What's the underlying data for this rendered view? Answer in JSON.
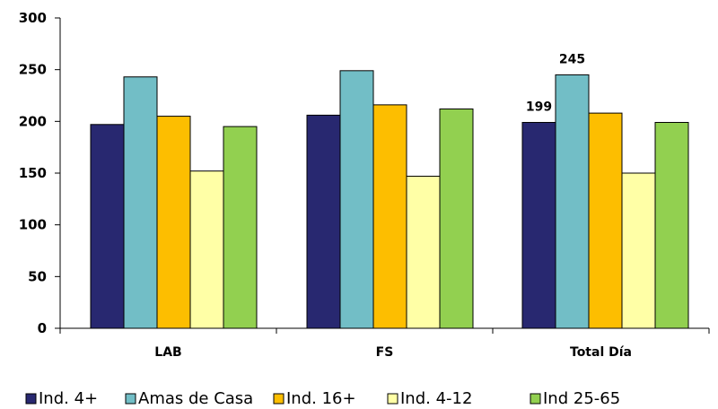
{
  "chart_data": {
    "type": "bar",
    "categories": [
      "LAB",
      "FS",
      "Total Día"
    ],
    "series": [
      {
        "name": "Ind. 4+",
        "color": "#282870",
        "values": [
          197,
          206,
          199
        ]
      },
      {
        "name": "Amas de Casa",
        "color": "#72bec6",
        "values": [
          243,
          249,
          245
        ]
      },
      {
        "name": "Ind. 16+",
        "color": "#fdbe00",
        "values": [
          205,
          216,
          208
        ]
      },
      {
        "name": "Ind. 4-12",
        "color": "#ffffa6",
        "values": [
          152,
          147,
          150
        ]
      },
      {
        "name": "Ind 25-65",
        "color": "#92d050",
        "values": [
          195,
          212,
          199
        ]
      }
    ],
    "data_labels": [
      {
        "category": "Total Día",
        "series": "Ind. 4+",
        "text": "199"
      },
      {
        "category": "Total Día",
        "series": "Amas de Casa",
        "text": "245"
      }
    ],
    "ylim": [
      0,
      300
    ],
    "yticks": [
      0,
      50,
      100,
      150,
      200,
      250,
      300
    ],
    "grid": false,
    "legend": "bottom",
    "title": "",
    "xlabel": "",
    "ylabel": ""
  }
}
